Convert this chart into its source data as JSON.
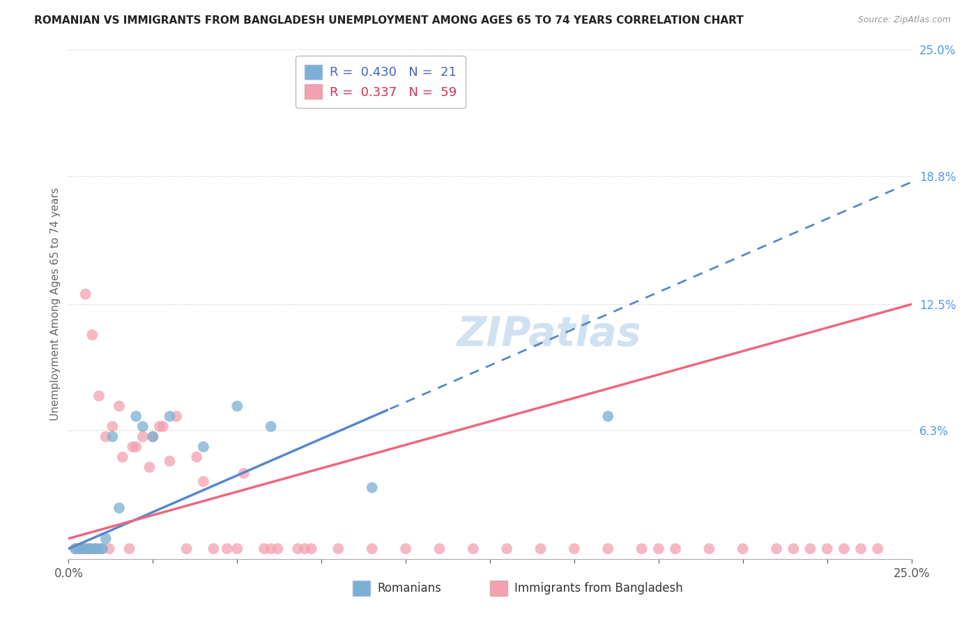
{
  "title": "ROMANIAN VS IMMIGRANTS FROM BANGLADESH UNEMPLOYMENT AMONG AGES 65 TO 74 YEARS CORRELATION CHART",
  "source": "Source: ZipAtlas.com",
  "ylabel": "Unemployment Among Ages 65 to 74 years",
  "xlim": [
    0.0,
    0.25
  ],
  "ylim": [
    0.0,
    0.25
  ],
  "yticks_right": [
    0.063,
    0.125,
    0.188,
    0.25
  ],
  "ytick_labels_right": [
    "6.3%",
    "12.5%",
    "18.8%",
    "25.0%"
  ],
  "legend_blue_R": "0.430",
  "legend_blue_N": "21",
  "legend_pink_R": "0.337",
  "legend_pink_N": "59",
  "blue_color": "#7BAFD4",
  "pink_color": "#F4A0B0",
  "blue_line_color": "#5588CC",
  "pink_line_color": "#EE6680",
  "blue_line_solid_end": 0.095,
  "blue_line_intercept": 0.005,
  "blue_line_slope": 0.72,
  "pink_line_intercept": 0.01,
  "pink_line_slope": 0.46,
  "blue_scatter_x": [
    0.002,
    0.003,
    0.004,
    0.005,
    0.006,
    0.007,
    0.008,
    0.009,
    0.01,
    0.011,
    0.013,
    0.015,
    0.02,
    0.022,
    0.025,
    0.03,
    0.04,
    0.05,
    0.06,
    0.09,
    0.16
  ],
  "blue_scatter_y": [
    0.005,
    0.005,
    0.005,
    0.005,
    0.005,
    0.005,
    0.005,
    0.005,
    0.005,
    0.01,
    0.06,
    0.025,
    0.07,
    0.065,
    0.06,
    0.07,
    0.055,
    0.075,
    0.065,
    0.035,
    0.07
  ],
  "pink_scatter_x": [
    0.002,
    0.003,
    0.004,
    0.005,
    0.005,
    0.006,
    0.007,
    0.008,
    0.009,
    0.01,
    0.011,
    0.012,
    0.013,
    0.015,
    0.016,
    0.018,
    0.019,
    0.02,
    0.022,
    0.024,
    0.025,
    0.027,
    0.028,
    0.03,
    0.032,
    0.035,
    0.038,
    0.04,
    0.043,
    0.047,
    0.052,
    0.058,
    0.062,
    0.068,
    0.072,
    0.08,
    0.09,
    0.1,
    0.11,
    0.12,
    0.13,
    0.14,
    0.15,
    0.16,
    0.17,
    0.175,
    0.18,
    0.19,
    0.2,
    0.21,
    0.215,
    0.22,
    0.225,
    0.23,
    0.235,
    0.24,
    0.05,
    0.06,
    0.07
  ],
  "pink_scatter_y": [
    0.005,
    0.005,
    0.005,
    0.005,
    0.13,
    0.005,
    0.11,
    0.005,
    0.08,
    0.005,
    0.06,
    0.005,
    0.065,
    0.075,
    0.05,
    0.005,
    0.055,
    0.055,
    0.06,
    0.045,
    0.06,
    0.065,
    0.065,
    0.048,
    0.07,
    0.005,
    0.05,
    0.038,
    0.005,
    0.005,
    0.042,
    0.005,
    0.005,
    0.005,
    0.005,
    0.005,
    0.005,
    0.005,
    0.005,
    0.005,
    0.005,
    0.005,
    0.005,
    0.005,
    0.005,
    0.005,
    0.005,
    0.005,
    0.005,
    0.005,
    0.005,
    0.005,
    0.005,
    0.005,
    0.005,
    0.005,
    0.005,
    0.005,
    0.005
  ]
}
